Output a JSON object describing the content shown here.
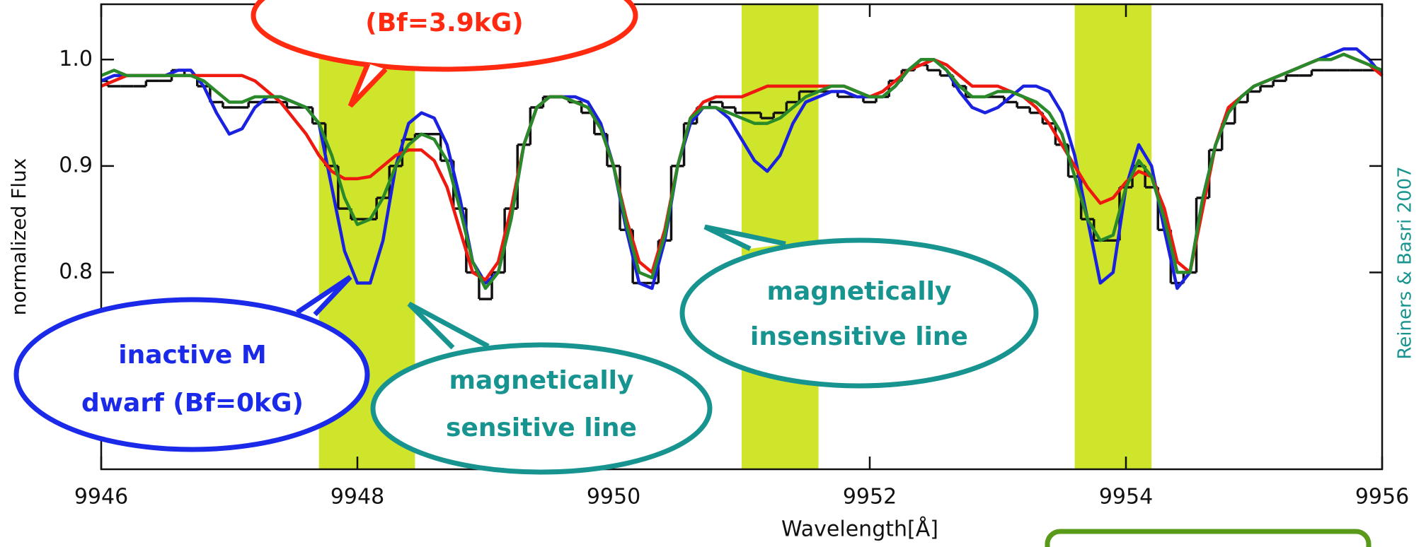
{
  "chart_data": {
    "type": "line",
    "x_label": "Wavelength[Å]",
    "y_label": "normalized Flux",
    "credit": "Reiners & Basri 2007",
    "xlim": [
      9946,
      9956
    ],
    "xticks": [
      9946,
      9948,
      9950,
      9952,
      9954,
      9956
    ],
    "ylim": [
      0.615,
      1.052
    ],
    "yticks": [
      0.8,
      0.9,
      {
        "value": 1.0,
        "label": "1.0"
      }
    ],
    "shaded_regions": [
      [
        9947.7,
        9948.45
      ],
      [
        9951.0,
        9951.6
      ],
      [
        9953.6,
        9954.2
      ]
    ],
    "shade_color": "#cfe52c",
    "x": [
      9946.0,
      9946.1,
      9946.2,
      9946.3,
      9946.4,
      9946.5,
      9946.6,
      9946.7,
      9946.8,
      9946.9,
      9947.0,
      9947.1,
      9947.2,
      9947.3,
      9947.4,
      9947.5,
      9947.6,
      9947.7,
      9947.8,
      9947.9,
      9948.0,
      9948.1,
      9948.2,
      9948.3,
      9948.4,
      9948.5,
      9948.6,
      9948.7,
      9948.8,
      9948.9,
      9949.0,
      9949.1,
      9949.2,
      9949.3,
      9949.4,
      9949.5,
      9949.6,
      9949.7,
      9949.8,
      9949.9,
      9950.0,
      9950.1,
      9950.2,
      9950.3,
      9950.4,
      9950.5,
      9950.6,
      9950.7,
      9950.8,
      9950.9,
      9951.0,
      9951.1,
      9951.2,
      9951.3,
      9951.4,
      9951.5,
      9951.6,
      9951.7,
      9951.8,
      9951.9,
      9952.0,
      9952.1,
      9952.2,
      9952.3,
      9952.4,
      9952.5,
      9952.6,
      9952.7,
      9952.8,
      9952.9,
      9953.0,
      9953.1,
      9953.2,
      9953.3,
      9953.4,
      9953.5,
      9953.6,
      9953.7,
      9953.8,
      9953.9,
      9954.0,
      9954.1,
      9954.2,
      9954.3,
      9954.4,
      9954.5,
      9954.6,
      9954.7,
      9954.8,
      9954.9,
      9955.0,
      9955.1,
      9955.2,
      9955.3,
      9955.4,
      9955.5,
      9955.6,
      9955.7,
      9955.8,
      9955.9,
      9956.0
    ],
    "series": [
      {
        "color": "#111111",
        "style": "step",
        "values": [
          0.98,
          0.975,
          0.975,
          0.975,
          0.98,
          0.98,
          0.99,
          0.985,
          0.975,
          0.96,
          0.955,
          0.955,
          0.96,
          0.96,
          0.96,
          0.955,
          0.955,
          0.94,
          0.9,
          0.86,
          0.85,
          0.85,
          0.87,
          0.9,
          0.925,
          0.93,
          0.93,
          0.905,
          0.86,
          0.8,
          0.775,
          0.8,
          0.86,
          0.92,
          0.955,
          0.965,
          0.965,
          0.96,
          0.95,
          0.93,
          0.9,
          0.84,
          0.79,
          0.79,
          0.83,
          0.9,
          0.94,
          0.955,
          0.96,
          0.955,
          0.95,
          0.95,
          0.945,
          0.95,
          0.96,
          0.97,
          0.97,
          0.97,
          0.965,
          0.965,
          0.96,
          0.965,
          0.98,
          0.99,
          0.995,
          0.99,
          0.985,
          0.975,
          0.965,
          0.965,
          0.965,
          0.96,
          0.955,
          0.95,
          0.94,
          0.92,
          0.89,
          0.85,
          0.83,
          0.83,
          0.88,
          0.9,
          0.88,
          0.84,
          0.79,
          0.8,
          0.87,
          0.915,
          0.94,
          0.96,
          0.97,
          0.975,
          0.98,
          0.985,
          0.985,
          0.99,
          0.99,
          0.99,
          0.99,
          0.99,
          0.99
        ]
      },
      {
        "color": "#1a22e0",
        "style": "line",
        "values": [
          0.98,
          0.985,
          0.985,
          0.985,
          0.985,
          0.985,
          0.99,
          0.99,
          0.975,
          0.95,
          0.93,
          0.935,
          0.955,
          0.965,
          0.965,
          0.96,
          0.955,
          0.94,
          0.88,
          0.82,
          0.79,
          0.79,
          0.83,
          0.9,
          0.94,
          0.95,
          0.945,
          0.92,
          0.87,
          0.81,
          0.79,
          0.8,
          0.85,
          0.92,
          0.955,
          0.965,
          0.965,
          0.965,
          0.96,
          0.94,
          0.9,
          0.84,
          0.79,
          0.785,
          0.83,
          0.9,
          0.94,
          0.955,
          0.955,
          0.945,
          0.925,
          0.905,
          0.895,
          0.91,
          0.94,
          0.96,
          0.965,
          0.97,
          0.97,
          0.965,
          0.965,
          0.965,
          0.975,
          0.99,
          1.0,
          1.0,
          0.99,
          0.97,
          0.955,
          0.95,
          0.955,
          0.965,
          0.975,
          0.975,
          0.97,
          0.95,
          0.91,
          0.85,
          0.79,
          0.8,
          0.88,
          0.92,
          0.9,
          0.84,
          0.785,
          0.8,
          0.87,
          0.92,
          0.95,
          0.965,
          0.975,
          0.98,
          0.985,
          0.99,
          0.995,
          1.0,
          1.005,
          1.01,
          1.01,
          1.0,
          0.985
        ]
      },
      {
        "color": "#ee1a10",
        "style": "line",
        "values": [
          0.975,
          0.98,
          0.985,
          0.985,
          0.985,
          0.985,
          0.985,
          0.985,
          0.985,
          0.985,
          0.985,
          0.985,
          0.98,
          0.97,
          0.96,
          0.945,
          0.93,
          0.91,
          0.895,
          0.888,
          0.888,
          0.89,
          0.9,
          0.91,
          0.915,
          0.915,
          0.905,
          0.88,
          0.84,
          0.8,
          0.793,
          0.81,
          0.86,
          0.92,
          0.955,
          0.965,
          0.965,
          0.96,
          0.955,
          0.935,
          0.9,
          0.85,
          0.81,
          0.8,
          0.84,
          0.9,
          0.945,
          0.96,
          0.965,
          0.965,
          0.965,
          0.97,
          0.975,
          0.975,
          0.975,
          0.975,
          0.975,
          0.975,
          0.975,
          0.97,
          0.965,
          0.97,
          0.98,
          0.99,
          0.995,
          1.0,
          0.995,
          0.985,
          0.975,
          0.975,
          0.975,
          0.97,
          0.965,
          0.955,
          0.94,
          0.92,
          0.9,
          0.88,
          0.865,
          0.87,
          0.885,
          0.895,
          0.89,
          0.86,
          0.81,
          0.8,
          0.86,
          0.92,
          0.955,
          0.965,
          0.975,
          0.98,
          0.985,
          0.99,
          0.995,
          1.0,
          1.0,
          1.005,
          1.0,
          0.995,
          0.985
        ]
      },
      {
        "color": "#2a8a2a",
        "style": "line",
        "values": [
          0.985,
          0.99,
          0.985,
          0.985,
          0.985,
          0.985,
          0.985,
          0.985,
          0.98,
          0.97,
          0.96,
          0.96,
          0.965,
          0.965,
          0.965,
          0.96,
          0.955,
          0.94,
          0.91,
          0.87,
          0.845,
          0.85,
          0.87,
          0.9,
          0.92,
          0.93,
          0.925,
          0.905,
          0.86,
          0.81,
          0.785,
          0.8,
          0.85,
          0.92,
          0.955,
          0.965,
          0.965,
          0.96,
          0.955,
          0.935,
          0.9,
          0.845,
          0.8,
          0.795,
          0.835,
          0.9,
          0.945,
          0.955,
          0.955,
          0.95,
          0.945,
          0.94,
          0.94,
          0.945,
          0.955,
          0.965,
          0.97,
          0.975,
          0.975,
          0.97,
          0.965,
          0.965,
          0.975,
          0.99,
          1.0,
          1.0,
          0.99,
          0.975,
          0.965,
          0.965,
          0.97,
          0.97,
          0.965,
          0.96,
          0.95,
          0.93,
          0.89,
          0.85,
          0.83,
          0.835,
          0.88,
          0.905,
          0.89,
          0.85,
          0.8,
          0.8,
          0.87,
          0.92,
          0.95,
          0.965,
          0.975,
          0.98,
          0.985,
          0.99,
          0.995,
          1.0,
          1.0,
          1.005,
          1.0,
          0.995,
          0.99
        ]
      }
    ],
    "annotations": [
      {
        "lines": [
          "(Bf=3.9kG)"
        ],
        "color": "#ff2a10"
      },
      {
        "lines": [
          "inactive M",
          "dwarf (Bf=0kG)"
        ],
        "color": "#1a2ae8"
      },
      {
        "lines": [
          "magnetically",
          "sensitive line"
        ],
        "color": "#17948f"
      },
      {
        "lines": [
          "magnetically",
          "insensitive line"
        ],
        "color": "#17948f"
      }
    ]
  }
}
